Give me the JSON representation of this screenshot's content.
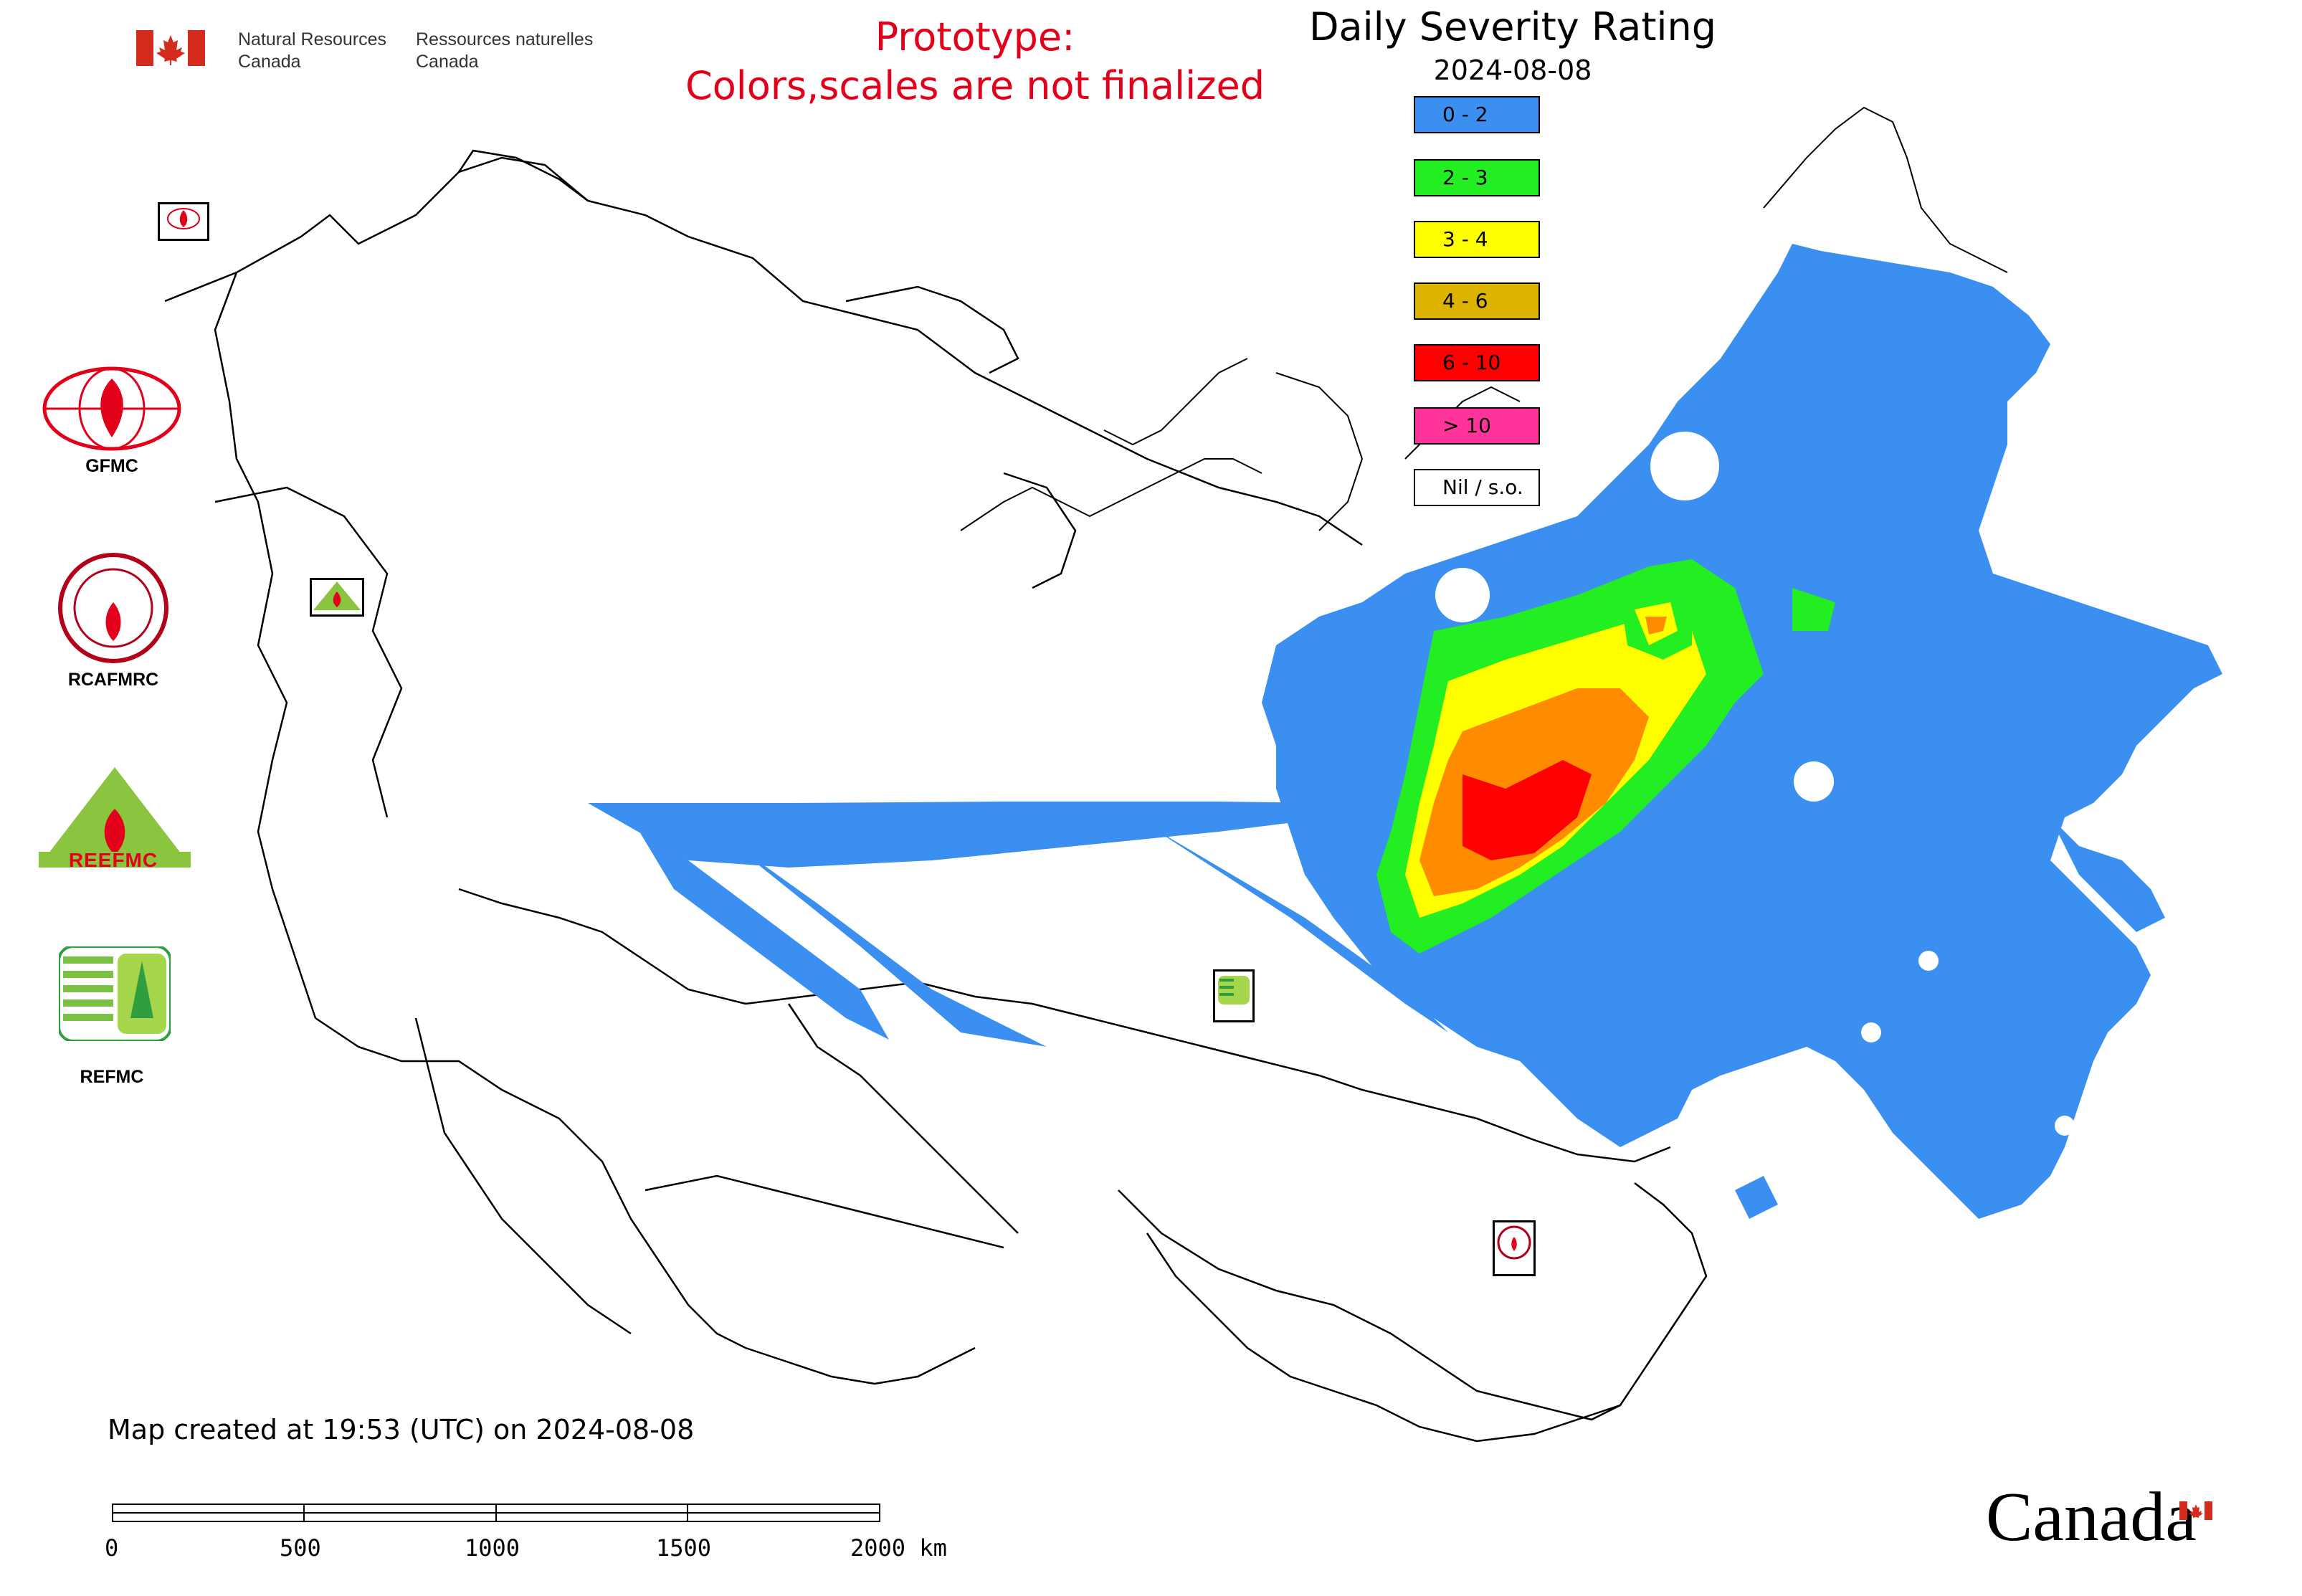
{
  "header": {
    "org_en_line1": "Natural Resources",
    "org_en_line2": "Canada",
    "org_fr_line1": "Ressources naturelles",
    "org_fr_line2": "Canada",
    "prototype_line1": "Prototype:",
    "prototype_line2": "Colors,scales are not finalized",
    "title": "Daily Severity Rating",
    "date": "2024-08-08"
  },
  "legend": [
    {
      "label": "0 - 2",
      "color": "#3a8ff0"
    },
    {
      "label": "2 - 3",
      "color": "#22ee22"
    },
    {
      "label": "3 - 4",
      "color": "#ffff00"
    },
    {
      "label": "4 - 6",
      "color": "#dcb400"
    },
    {
      "label": "6 - 10",
      "color": "#ff0000"
    },
    {
      "label": "> 10",
      "color": "#ff3399"
    },
    {
      "label": "Nil / s.o.",
      "color": "#ffffff"
    }
  ],
  "side_logos": {
    "gfmc": "GFMC",
    "rcafmrc": "RCAFMRC",
    "reefmc_badge": "REEFMC",
    "refmc": "REFMC"
  },
  "map_markers": {
    "gfmc": "GFMC",
    "refmc": "REFMC",
    "rcafmrc": "RCAFMRC",
    "reefmc": "REEFMC"
  },
  "footer": {
    "map_created": "Map created at 19:53 (UTC) on 2024-08-08",
    "scale_ticks": [
      "0",
      "500",
      "1000",
      "1500",
      "2000 km"
    ],
    "wordmark": "Canada"
  },
  "colors": {
    "prototype_text": "#e3001b",
    "flag_red": "#d52b1e",
    "dsr_0_2": "#3a8ff0"
  }
}
